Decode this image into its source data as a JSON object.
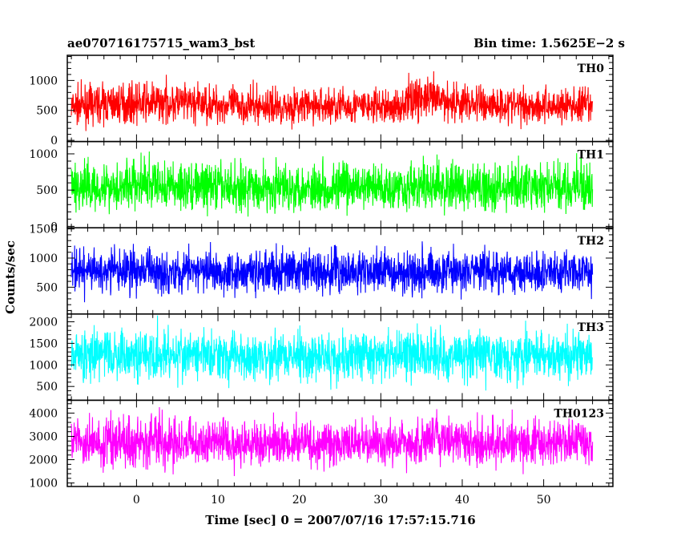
{
  "chart_data": {
    "type": "line",
    "title": "ae070716175715_wam3_bst",
    "subtitle": "Bin time: 1.5625E−2 s",
    "xlabel": "Time [sec] 0 = 2007/07/16 17:57:15.716",
    "ylabel": "Counts/sec",
    "xlim": [
      -8.5,
      58.5
    ],
    "x_ticks": [
      0,
      10,
      20,
      30,
      40,
      50
    ],
    "x_tick_labels": [
      "0",
      "10",
      "20",
      "30",
      "40",
      "50"
    ],
    "data_range": [
      -8,
      56
    ],
    "grid": false,
    "panels": [
      {
        "name": "TH0",
        "color": "#ff0000",
        "ylim": [
          -20,
          1420
        ],
        "ticks": [
          0,
          500,
          1000
        ],
        "tick_labels": [
          "0",
          "500",
          "1000"
        ],
        "points": [
          [
            -8,
            550
          ],
          [
            -4,
            600
          ],
          [
            0,
            610
          ],
          [
            4,
            620
          ],
          [
            8,
            600
          ],
          [
            12,
            580
          ],
          [
            16,
            560
          ],
          [
            20,
            560
          ],
          [
            24,
            570
          ],
          [
            28,
            560
          ],
          [
            32,
            540
          ],
          [
            34,
            700
          ],
          [
            36,
            680
          ],
          [
            40,
            620
          ],
          [
            44,
            590
          ],
          [
            48,
            580
          ],
          [
            52,
            570
          ],
          [
            56,
            560
          ]
        ],
        "spread": [
          -0.85,
          0.95
        ]
      },
      {
        "name": "TH1",
        "color": "#00ff00",
        "ylim": [
          -20,
          1170
        ],
        "ticks": [
          0,
          500,
          1000
        ],
        "tick_labels": [
          "0",
          "500",
          "1000"
        ],
        "points": [
          [
            -8,
            520
          ],
          [
            -4,
            530
          ],
          [
            0,
            560
          ],
          [
            4,
            540
          ],
          [
            8,
            530
          ],
          [
            12,
            520
          ],
          [
            16,
            520
          ],
          [
            20,
            530
          ],
          [
            24,
            520
          ],
          [
            28,
            520
          ],
          [
            32,
            530
          ],
          [
            36,
            530
          ],
          [
            40,
            520
          ],
          [
            44,
            520
          ],
          [
            48,
            520
          ],
          [
            52,
            520
          ],
          [
            56,
            520
          ]
        ],
        "spread": [
          -0.95,
          1.2
        ]
      },
      {
        "name": "TH2",
        "color": "#0000ff",
        "ylim": [
          40,
          1520
        ],
        "ticks": [
          500,
          1000,
          1500
        ],
        "tick_labels": [
          "500",
          "1000",
          "1500"
        ],
        "points": [
          [
            -8,
            760
          ],
          [
            -4,
            770
          ],
          [
            0,
            790
          ],
          [
            4,
            780
          ],
          [
            8,
            770
          ],
          [
            12,
            760
          ],
          [
            16,
            760
          ],
          [
            20,
            770
          ],
          [
            24,
            760
          ],
          [
            28,
            760
          ],
          [
            32,
            770
          ],
          [
            36,
            780
          ],
          [
            40,
            770
          ],
          [
            44,
            760
          ],
          [
            48,
            760
          ],
          [
            52,
            760
          ],
          [
            56,
            760
          ]
        ],
        "spread": [
          -0.8,
          0.85
        ]
      },
      {
        "name": "TH3",
        "color": "#00ffff",
        "ylim": [
          180,
          2180
        ],
        "ticks": [
          500,
          1000,
          1500,
          2000
        ],
        "tick_labels": [
          "500",
          "1000",
          "1500",
          "2000"
        ],
        "points": [
          [
            -8,
            1200
          ],
          [
            -4,
            1230
          ],
          [
            0,
            1250
          ],
          [
            4,
            1240
          ],
          [
            8,
            1220
          ],
          [
            12,
            1210
          ],
          [
            16,
            1200
          ],
          [
            20,
            1210
          ],
          [
            24,
            1200
          ],
          [
            28,
            1200
          ],
          [
            32,
            1210
          ],
          [
            36,
            1230
          ],
          [
            40,
            1220
          ],
          [
            44,
            1210
          ],
          [
            48,
            1200
          ],
          [
            52,
            1200
          ],
          [
            56,
            1200
          ]
        ],
        "spread": [
          -0.8,
          0.8
        ]
      },
      {
        "name": "TH0123",
        "color": "#ff00ff",
        "ylim": [
          850,
          4550
        ],
        "ticks": [
          1000,
          2000,
          3000,
          4000
        ],
        "tick_labels": [
          "1000",
          "2000",
          "3000",
          "4000"
        ],
        "points": [
          [
            -8,
            2700
          ],
          [
            -4,
            2750
          ],
          [
            0,
            2850
          ],
          [
            4,
            2800
          ],
          [
            8,
            2750
          ],
          [
            12,
            2700
          ],
          [
            16,
            2700
          ],
          [
            20,
            2720
          ],
          [
            24,
            2700
          ],
          [
            28,
            2680
          ],
          [
            32,
            2700
          ],
          [
            36,
            2850
          ],
          [
            40,
            2780
          ],
          [
            44,
            2720
          ],
          [
            48,
            2700
          ],
          [
            52,
            2700
          ],
          [
            56,
            2700
          ]
        ],
        "spread": [
          -0.6,
          0.62
        ]
      }
    ]
  }
}
